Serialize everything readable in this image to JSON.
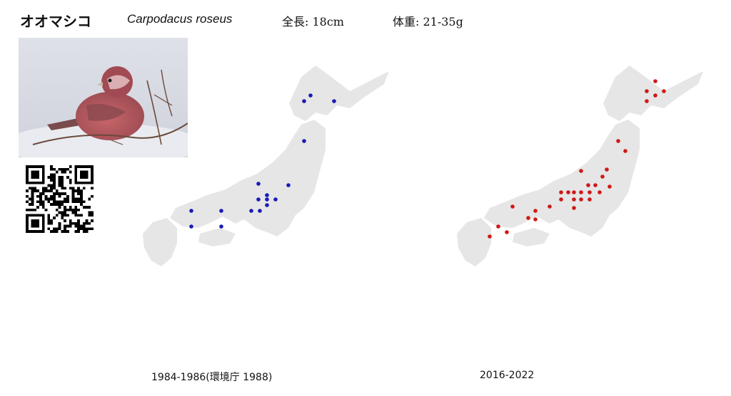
{
  "header": {
    "name_ja": "オオマシコ",
    "name_sci": "Carpodacus roseus",
    "length_text": "全長: 18cm",
    "weight_text": "体重: 21-35g"
  },
  "photo": {
    "subject": "rosefinch-on-twig",
    "colors": {
      "bird_body": "#b85a5e",
      "bird_head": "#a24a54",
      "background": "#d6d9e2",
      "branch": "#6b4a3a"
    }
  },
  "qr_code": {
    "icon": "qr-code-icon"
  },
  "maps": {
    "land_color": "#e6e6e6",
    "left": {
      "label": "1984-1986(環境庁 1988)",
      "dot_color": "#1a1ab8"
    },
    "right": {
      "label": "2016-2022",
      "dot_color": "#d01818"
    }
  }
}
